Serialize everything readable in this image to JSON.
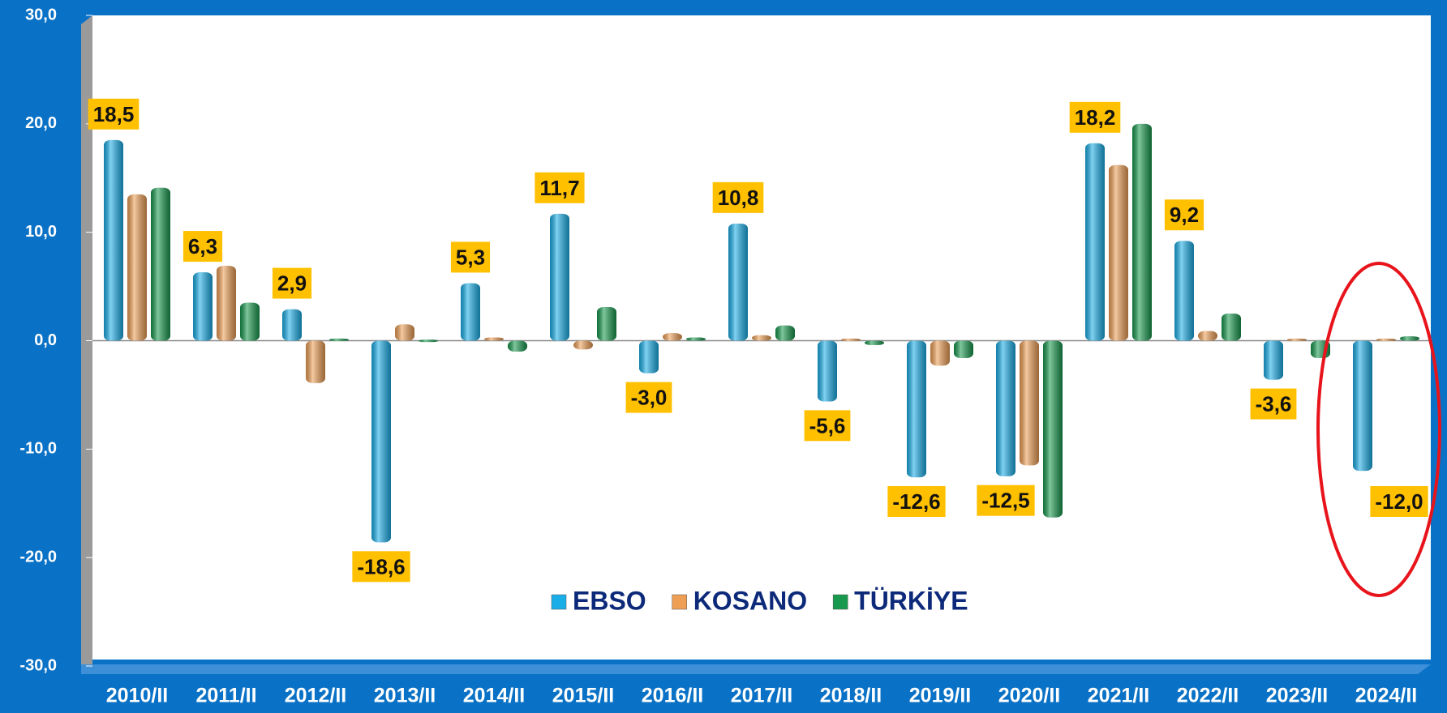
{
  "chart_data": {
    "type": "bar",
    "categories": [
      "2010/II",
      "2011/II",
      "2012/II",
      "2013/II",
      "2014/II",
      "2015/II",
      "2016/II",
      "2017/II",
      "2018/II",
      "2019/II",
      "2020/II",
      "2021/II",
      "2022/II",
      "2023/II",
      "2024/II"
    ],
    "series": [
      {
        "name": "EBSO",
        "color": "#1aaee8",
        "values": [
          18.5,
          6.3,
          2.9,
          -18.6,
          5.3,
          11.7,
          -3.0,
          10.8,
          -5.6,
          -12.6,
          -12.5,
          18.2,
          9.2,
          -3.6,
          -12.0
        ],
        "value_labels": [
          "18,5",
          "6,3",
          "2,9",
          "-18,6",
          "5,3",
          "11,7",
          "-3,0",
          "10,8",
          "-5,6",
          "-12,6",
          "-12,5",
          "18,2",
          "9,2",
          "-3,6",
          "-12,0"
        ]
      },
      {
        "name": "KOSANO",
        "color": "#ee9f55",
        "values": [
          13.5,
          6.9,
          -3.9,
          1.5,
          0.3,
          -0.8,
          0.7,
          0.5,
          0.2,
          -2.3,
          -11.5,
          16.2,
          0.9,
          0.2,
          0.2
        ]
      },
      {
        "name": "TÜRKİYE",
        "color": "#18994e",
        "values": [
          14.1,
          3.5,
          0.2,
          0.1,
          -1.0,
          3.1,
          0.3,
          1.4,
          -0.4,
          -1.6,
          -16.3,
          20.0,
          2.5,
          -1.6,
          0.4
        ]
      }
    ],
    "ylim": [
      -30,
      30
    ],
    "yticks": [
      {
        "value": -30,
        "label": "-30,0"
      },
      {
        "value": -20,
        "label": "-20,0"
      },
      {
        "value": -10,
        "label": "-10,0"
      },
      {
        "value": 0,
        "label": "0,0"
      },
      {
        "value": 10,
        "label": "10,0"
      },
      {
        "value": 20,
        "label": "20,0"
      },
      {
        "value": 30,
        "label": "30,0"
      }
    ]
  }
}
